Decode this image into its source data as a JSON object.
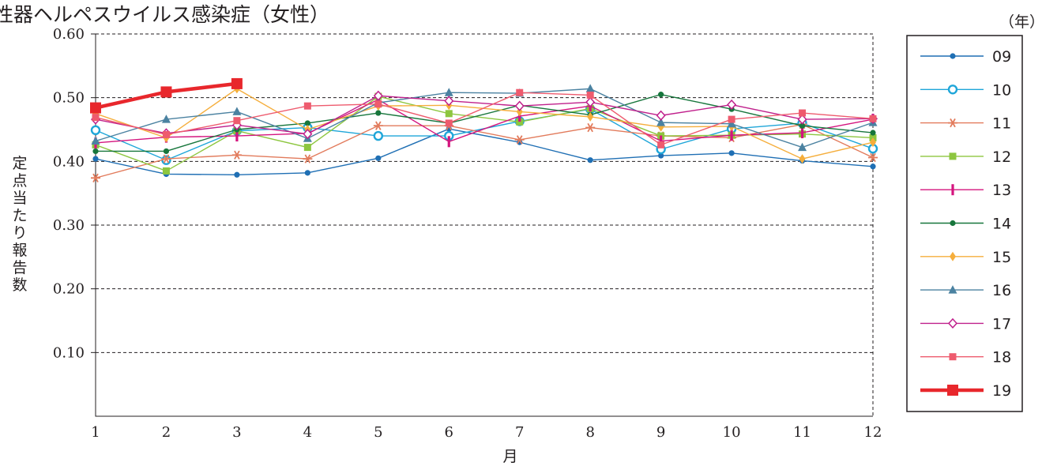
{
  "chart_data": {
    "type": "line",
    "title": "性器ヘルペスウイルス感染症（女性）",
    "year_unit": "（年）",
    "xlabel": "月",
    "ylabel": "定点当たり報告数",
    "categories": [
      "1",
      "2",
      "3",
      "4",
      "5",
      "6",
      "7",
      "8",
      "9",
      "10",
      "11",
      "12"
    ],
    "yticks": [
      "0.10",
      "0.20",
      "0.30",
      "0.40",
      "0.50",
      "0.60"
    ],
    "ylim": [
      0,
      0.6
    ],
    "grid": "horizontal-dashed",
    "legend_position": "right",
    "series": [
      {
        "name": "09",
        "color": "#1f6fb4",
        "marker": "dot",
        "values": [
          0.404,
          0.38,
          0.379,
          0.382,
          0.405,
          0.451,
          0.43,
          0.402,
          0.409,
          0.413,
          0.401,
          0.392
        ]
      },
      {
        "name": "10",
        "color": "#1fa6d9",
        "marker": "open-circle",
        "values": [
          0.449,
          0.402,
          0.448,
          0.453,
          0.44,
          0.44,
          0.463,
          0.482,
          0.419,
          0.451,
          0.46,
          0.42
        ]
      },
      {
        "name": "11",
        "color": "#e27b5c",
        "marker": "asterisk",
        "values": [
          0.374,
          0.404,
          0.41,
          0.404,
          0.456,
          0.456,
          0.434,
          0.453,
          0.44,
          0.437,
          0.458,
          0.406
        ]
      },
      {
        "name": "12",
        "color": "#8dc63f",
        "marker": "square",
        "values": [
          0.426,
          0.385,
          0.448,
          0.422,
          0.502,
          0.475,
          0.462,
          0.483,
          0.44,
          0.441,
          0.443,
          0.437
        ]
      },
      {
        "name": "13",
        "color": "#d4147e",
        "marker": "bar",
        "values": [
          0.429,
          0.438,
          0.44,
          0.444,
          0.497,
          0.431,
          0.471,
          0.487,
          0.432,
          0.441,
          0.445,
          0.466
        ]
      },
      {
        "name": "14",
        "color": "#17763c",
        "marker": "dot",
        "values": [
          0.416,
          0.416,
          0.45,
          0.46,
          0.476,
          0.46,
          0.488,
          0.473,
          0.505,
          0.482,
          0.456,
          0.445
        ]
      },
      {
        "name": "15",
        "color": "#f5ae3c",
        "marker": "diamond",
        "values": [
          0.475,
          0.437,
          0.514,
          0.45,
          0.487,
          0.488,
          0.478,
          0.47,
          0.454,
          0.455,
          0.404,
          0.43
        ]
      },
      {
        "name": "16",
        "color": "#4b82a1",
        "marker": "triangle",
        "values": [
          0.432,
          0.466,
          0.478,
          0.436,
          0.492,
          0.508,
          0.507,
          0.514,
          0.461,
          0.459,
          0.422,
          0.461
        ]
      },
      {
        "name": "17",
        "color": "#c0208c",
        "marker": "open-diamond",
        "values": [
          0.466,
          0.444,
          0.457,
          0.443,
          0.503,
          0.495,
          0.487,
          0.493,
          0.472,
          0.489,
          0.466,
          0.467
        ]
      },
      {
        "name": "18",
        "color": "#ee5b6e",
        "marker": "square",
        "values": [
          0.469,
          0.442,
          0.464,
          0.487,
          0.49,
          0.46,
          0.508,
          0.504,
          0.426,
          0.466,
          0.476,
          0.467
        ]
      },
      {
        "name": "19",
        "color": "#e8272c",
        "marker": "big-square",
        "values": [
          0.484,
          0.509,
          0.522,
          null,
          null,
          null,
          null,
          null,
          null,
          null,
          null,
          null
        ]
      }
    ]
  }
}
